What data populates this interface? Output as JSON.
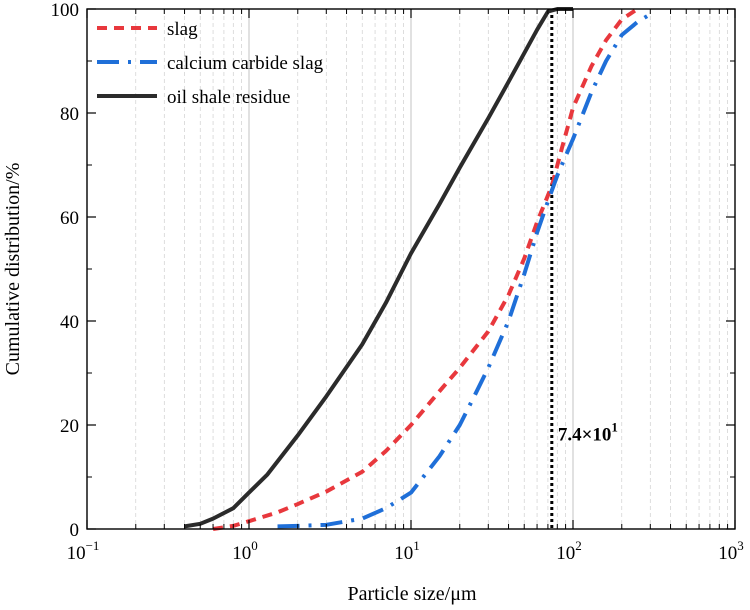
{
  "chart_data": {
    "type": "line",
    "xscale": "log",
    "xlabel": "Particle size/μm",
    "ylabel": "Cumulative distribution/%",
    "xlim": [
      0.1,
      1000
    ],
    "ylim": [
      0,
      100
    ],
    "x_ticks": [
      {
        "value": 0.1,
        "base": "10",
        "exp": "−1"
      },
      {
        "value": 1,
        "base": "10",
        "exp": "0"
      },
      {
        "value": 10,
        "base": "10",
        "exp": "1"
      },
      {
        "value": 100,
        "base": "10",
        "exp": "2"
      },
      {
        "value": 1000,
        "base": "10",
        "exp": "3"
      }
    ],
    "y_ticks": [
      "0",
      "20",
      "40",
      "60",
      "80",
      "100"
    ],
    "grid": true,
    "legend_position": "top-left",
    "series": [
      {
        "name": "slag",
        "color": "#e8383d",
        "style": "dashed",
        "points": [
          [
            0.6,
            0
          ],
          [
            0.8,
            0.6
          ],
          [
            1,
            1.5
          ],
          [
            1.5,
            3.2
          ],
          [
            2,
            4.8
          ],
          [
            3,
            7.2
          ],
          [
            5,
            11
          ],
          [
            7,
            15
          ],
          [
            10,
            20
          ],
          [
            15,
            26.5
          ],
          [
            20,
            31
          ],
          [
            30,
            38
          ],
          [
            40,
            45
          ],
          [
            50,
            52
          ],
          [
            60,
            59
          ],
          [
            74,
            66
          ],
          [
            85,
            73
          ],
          [
            100,
            81
          ],
          [
            130,
            89
          ],
          [
            160,
            94
          ],
          [
            200,
            98
          ],
          [
            250,
            100
          ]
        ]
      },
      {
        "name": "calcium carbide slag",
        "color": "#1f6fd8",
        "style": "dashdot",
        "points": [
          [
            1.5,
            0.5
          ],
          [
            2,
            0.6
          ],
          [
            3,
            0.8
          ],
          [
            5,
            2
          ],
          [
            7,
            4
          ],
          [
            10,
            7
          ],
          [
            15,
            14
          ],
          [
            20,
            20
          ],
          [
            25,
            26
          ],
          [
            30,
            31
          ],
          [
            40,
            40
          ],
          [
            50,
            49
          ],
          [
            60,
            57
          ],
          [
            70,
            63
          ],
          [
            80,
            68
          ],
          [
            100,
            75
          ],
          [
            130,
            84
          ],
          [
            160,
            90
          ],
          [
            200,
            95
          ],
          [
            250,
            97.5
          ],
          [
            300,
            99
          ]
        ]
      },
      {
        "name": "oil shale residue",
        "color": "#2b2b2b",
        "style": "solid",
        "points": [
          [
            0.4,
            0.5
          ],
          [
            0.5,
            1
          ],
          [
            0.6,
            2
          ],
          [
            0.8,
            4
          ],
          [
            1,
            7
          ],
          [
            1.3,
            10.5
          ],
          [
            2,
            18
          ],
          [
            3,
            25.5
          ],
          [
            5,
            35.5
          ],
          [
            7,
            43.5
          ],
          [
            10,
            53
          ],
          [
            15,
            62.5
          ],
          [
            20,
            69.5
          ],
          [
            30,
            79
          ],
          [
            40,
            86
          ],
          [
            50,
            91.5
          ],
          [
            60,
            96
          ],
          [
            70,
            99.5
          ],
          [
            80,
            100
          ],
          [
            100,
            100
          ]
        ]
      }
    ],
    "annotations": [
      {
        "type": "vertical-line",
        "x": 74,
        "style": "dotted",
        "color": "#000000"
      },
      {
        "type": "text",
        "base": "7.4×10",
        "exp": "1",
        "x": 74,
        "y": 17
      }
    ]
  }
}
